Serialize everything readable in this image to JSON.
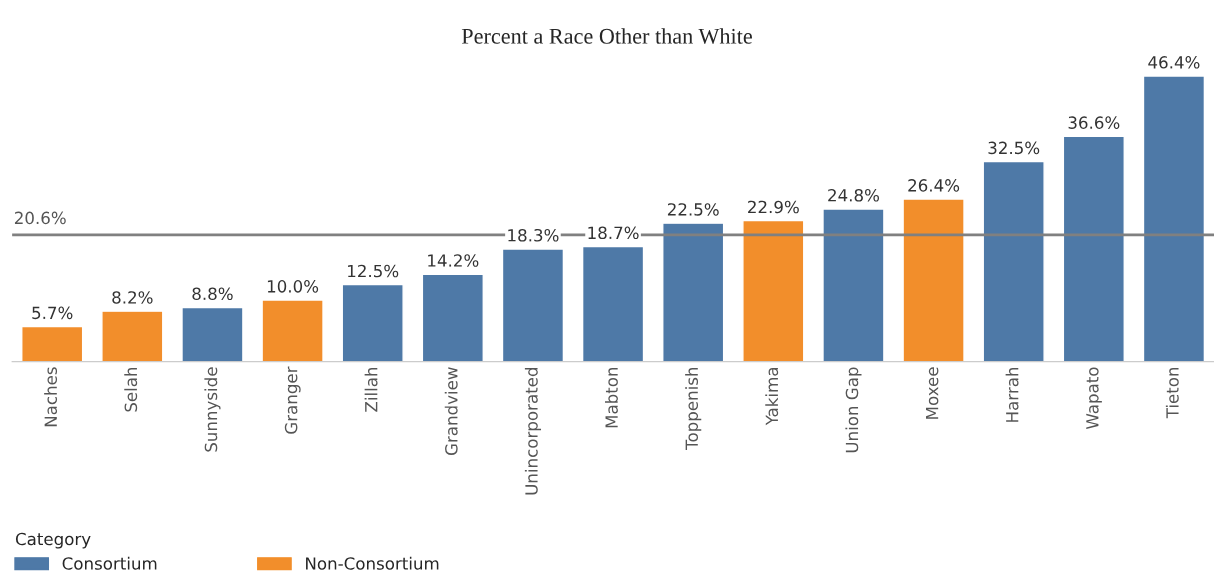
{
  "chart_data": {
    "type": "bar",
    "title": "Percent a Race Other than White",
    "categories": [
      "Naches",
      "Selah",
      "Sunnyside",
      "Granger",
      "Zillah",
      "Grandview",
      "Unincorporated",
      "Mabton",
      "Toppenish",
      "Yakima",
      "Union Gap",
      "Moxee",
      "Harrah",
      "Wapato",
      "Tieton"
    ],
    "series": [
      {
        "name": "Consortium",
        "color": "#4e79a7",
        "values": [
          null,
          null,
          8.8,
          null,
          12.5,
          14.2,
          18.3,
          18.7,
          22.5,
          null,
          24.8,
          null,
          32.5,
          36.6,
          46.4
        ],
        "value_labels": [
          null,
          null,
          "8.8%",
          null,
          "12.5%",
          "14.2%",
          "18.3%",
          "18.7%",
          "22.5%",
          null,
          "24.8%",
          null,
          "32.5%",
          "36.6%",
          "46.4%"
        ]
      },
      {
        "name": "Non-Consortium",
        "color": "#f28e2b",
        "values": [
          5.7,
          8.2,
          null,
          10.0,
          null,
          null,
          null,
          null,
          null,
          22.9,
          null,
          26.4,
          null,
          null,
          null
        ],
        "value_labels": [
          "5.7%",
          "8.2%",
          null,
          "10.0%",
          null,
          null,
          null,
          null,
          null,
          "22.9%",
          null,
          "26.4%",
          null,
          null,
          null
        ]
      }
    ],
    "legend_title": "Category",
    "legend": "bottom left",
    "tick_labels": "x",
    "ref_lines": [
      {
        "axis": "y",
        "value": 20.6,
        "label": "20.6%",
        "color": "#808080"
      }
    ]
  }
}
